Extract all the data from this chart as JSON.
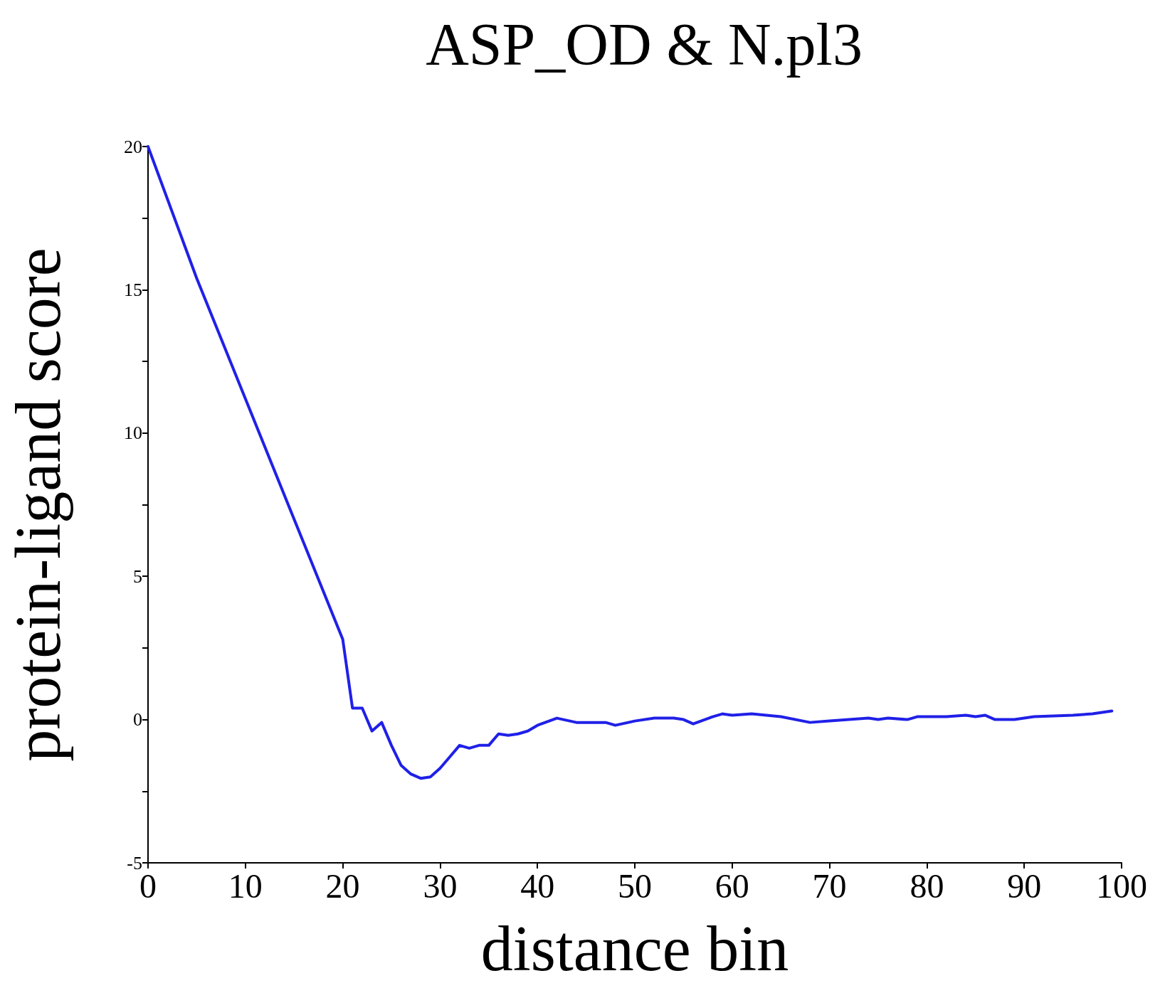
{
  "chart_data": {
    "type": "line",
    "title": "ASP_OD & N.pl3",
    "xlabel": "distance bin",
    "ylabel": "protein-ligand score",
    "xlim": [
      0,
      100
    ],
    "xticks": [
      0,
      10,
      20,
      30,
      40,
      50,
      60,
      70,
      80,
      90,
      100
    ],
    "ylim": [
      -5,
      20
    ],
    "yticks": [
      -5,
      {
        "value": -2.5,
        "label": null
      },
      0,
      {
        "value": 2.5,
        "label": null
      },
      5,
      {
        "value": 7.5,
        "label": null
      },
      10,
      {
        "value": 12.5,
        "label": null
      },
      15,
      {
        "value": 17.5,
        "label": null
      },
      20
    ],
    "grid": false,
    "marker": "none",
    "line_style": "solid",
    "series": [
      {
        "color": "#2020e8",
        "x": [
          0,
          5,
          10,
          15,
          20,
          21,
          22,
          23,
          24,
          25,
          26,
          27,
          28,
          29,
          30,
          31,
          32,
          33,
          34,
          35,
          36,
          37,
          38,
          39,
          40,
          42,
          44,
          47,
          48,
          50,
          52,
          54,
          55,
          56,
          58,
          59,
          60,
          62,
          65,
          68,
          70,
          72,
          74,
          75,
          76,
          78,
          79,
          80,
          82,
          84,
          85,
          86,
          87,
          89,
          91,
          95,
          97,
          99
        ],
        "values": [
          20,
          15.4,
          11.2,
          7,
          2.8,
          0.4,
          0.4,
          -0.4,
          -0.1,
          -0.9,
          -1.6,
          -1.9,
          -2.05,
          -2,
          -1.7,
          -1.3,
          -0.9,
          -1,
          -0.9,
          -0.9,
          -0.5,
          -0.55,
          -0.5,
          -0.4,
          -0.2,
          0.05,
          -0.1,
          -0.1,
          -0.2,
          -0.05,
          0.05,
          0.05,
          0,
          -0.15,
          0.1,
          0.2,
          0.15,
          0.2,
          0.1,
          -0.1,
          -0.05,
          0,
          0.05,
          0,
          0.05,
          0,
          0.1,
          0.1,
          0.1,
          0.15,
          0.1,
          0.15,
          0,
          0,
          0.1,
          0.15,
          0.2,
          0.3
        ]
      }
    ]
  }
}
